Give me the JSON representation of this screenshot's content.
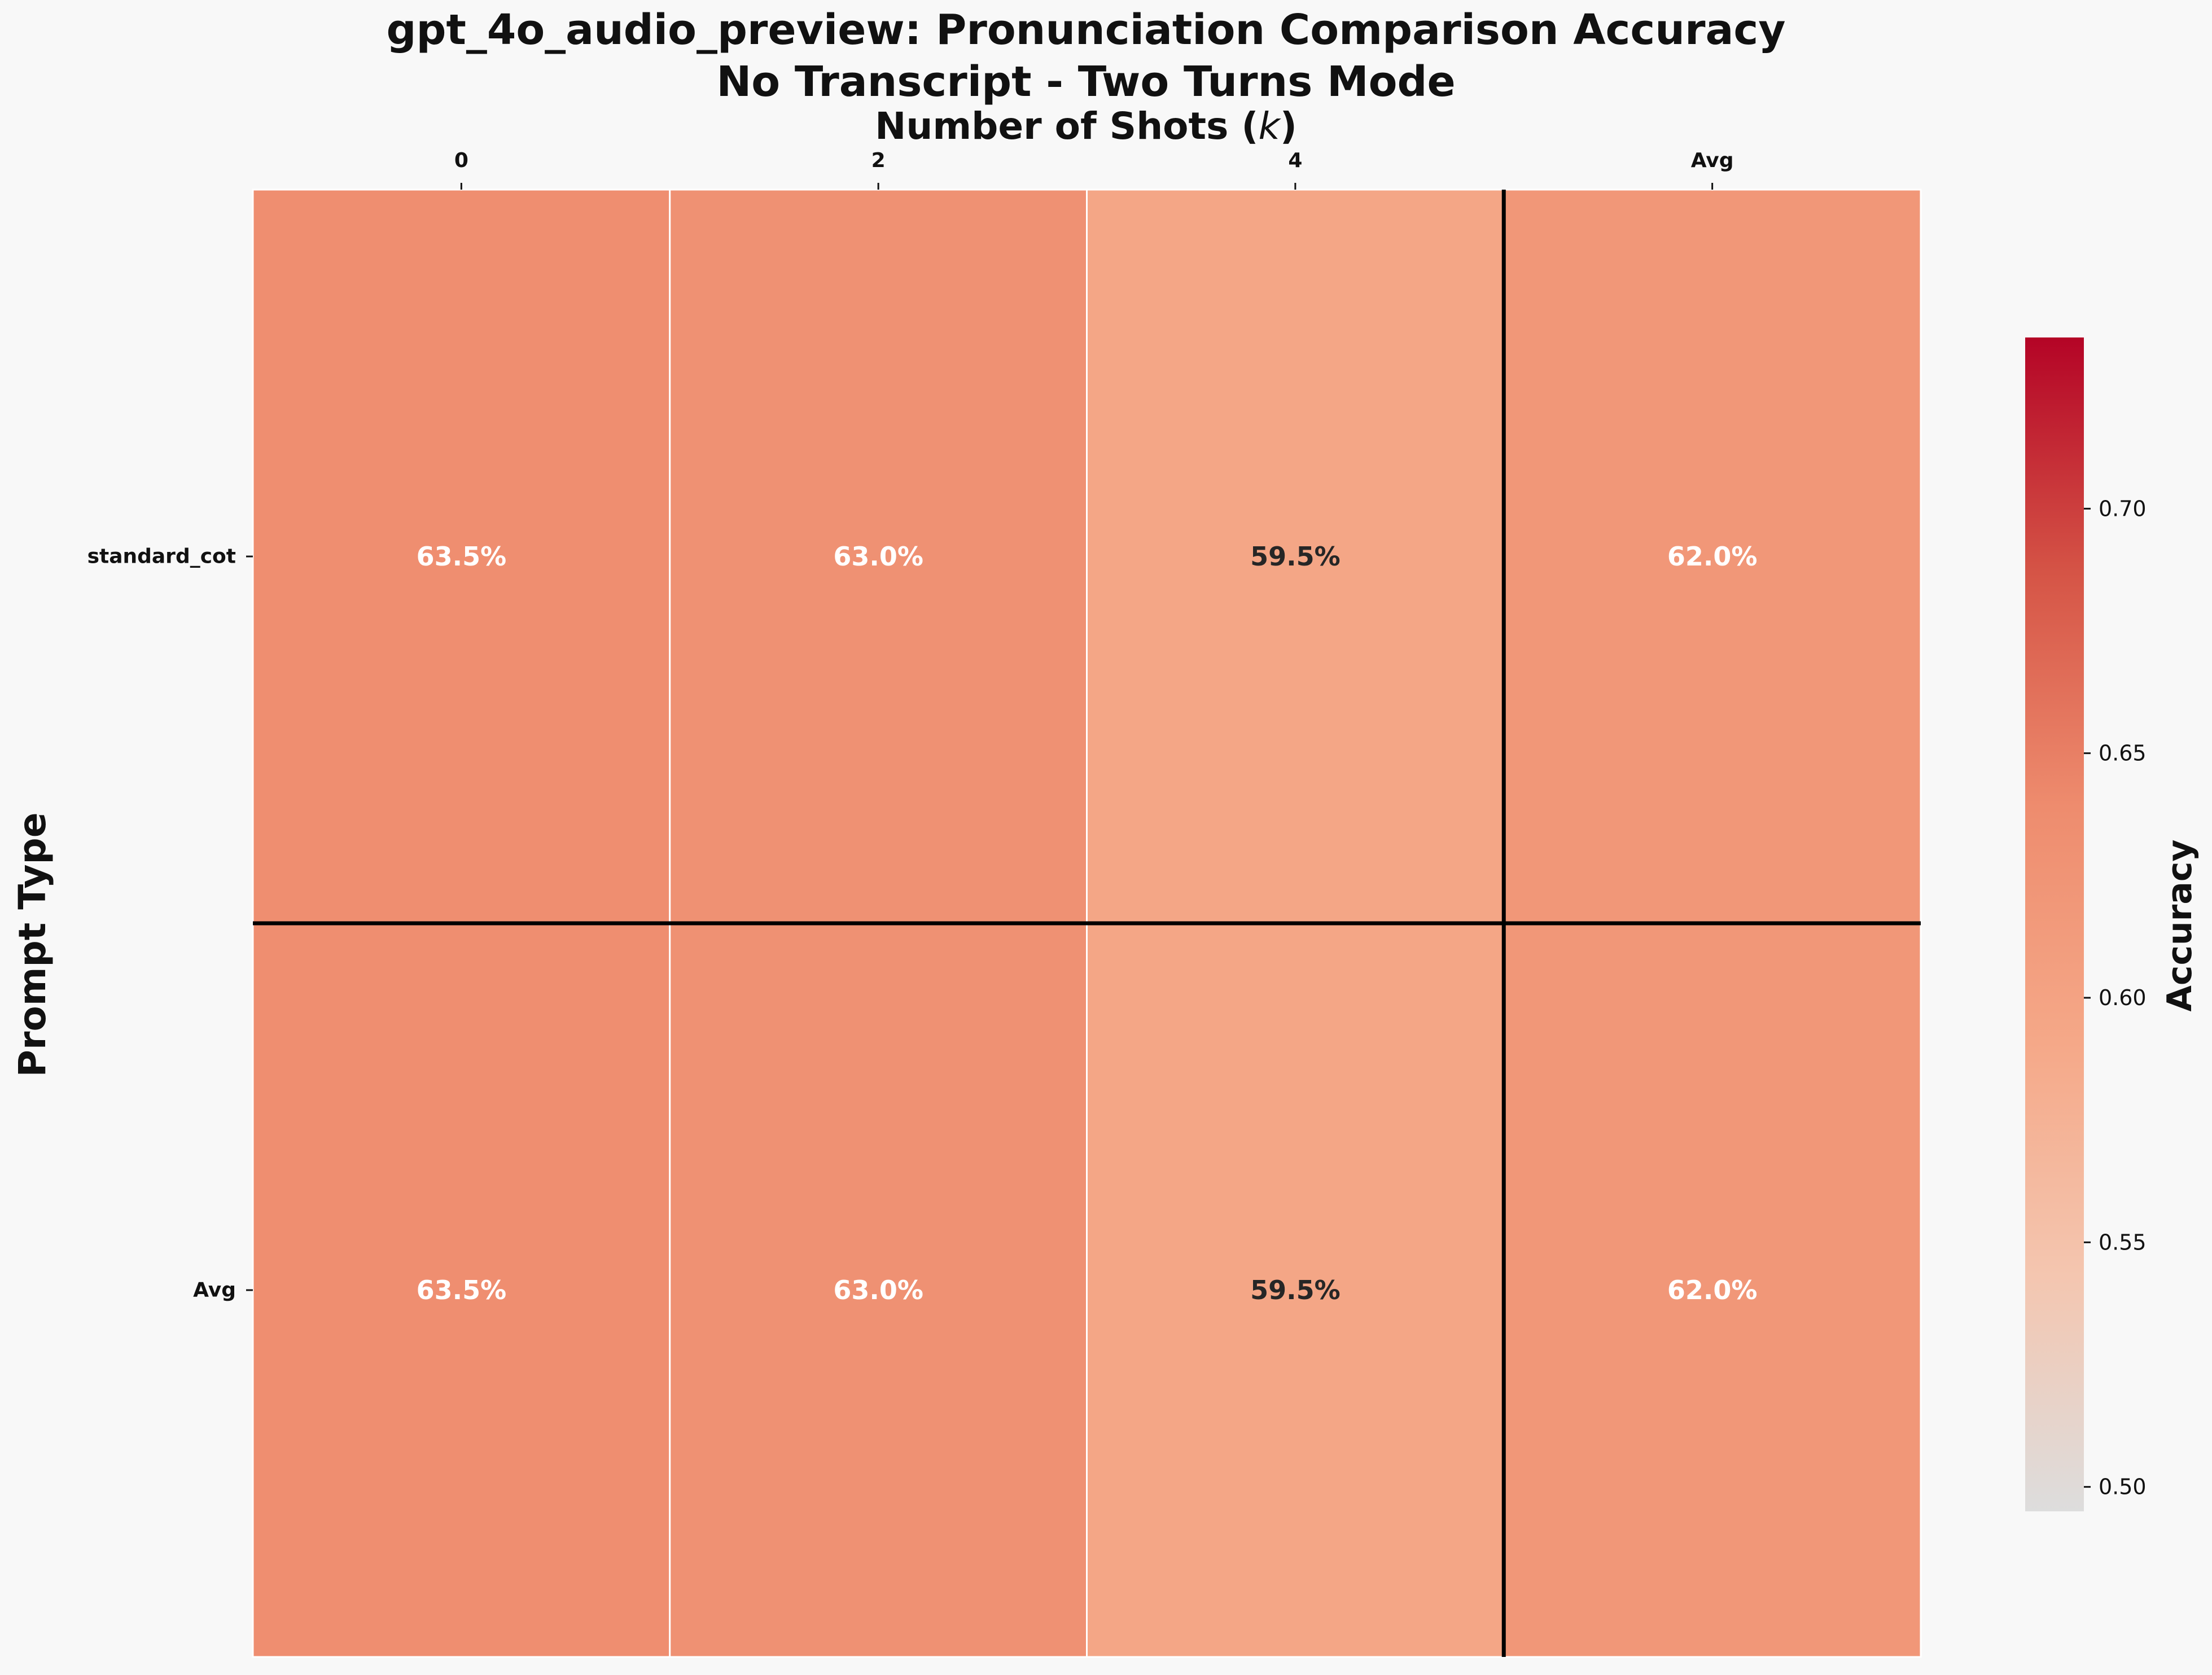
{
  "chart_data": {
    "type": "heatmap",
    "title": "gpt_4o_audio_preview: Pronunciation Comparison Accuracy",
    "subtitle": "No Transcript - Two Turns Mode",
    "xlabel_text": "Number of Shots (",
    "xlabel_var": "k",
    "xlabel_close": ")",
    "ylabel": "Prompt Type",
    "x_tick_position": "top",
    "columns": [
      "0",
      "2",
      "4",
      "Avg"
    ],
    "rows": [
      "standard_cot",
      "Avg"
    ],
    "values": [
      [
        0.635,
        0.63,
        0.595,
        0.62
      ],
      [
        0.635,
        0.63,
        0.595,
        0.62
      ]
    ],
    "cell_labels": [
      [
        "63.5%",
        "63.0%",
        "59.5%",
        "62.0%"
      ],
      [
        "63.5%",
        "63.0%",
        "59.5%",
        "62.0%"
      ]
    ],
    "colorbar": {
      "label": "Accuracy",
      "vmin": 0.495,
      "vmax": 0.735,
      "ticks": [
        0.5,
        0.55,
        0.6,
        0.65,
        0.7
      ],
      "tick_labels": [
        "0.50",
        "0.55",
        "0.60",
        "0.65",
        "0.70"
      ],
      "colormap": "coolwarm-right-half (light gray to dark red)",
      "colors": [
        "#dddddd",
        "#f4c6b0",
        "#f5a888",
        "#ee8c6e",
        "#d55446",
        "#b40426"
      ]
    },
    "separators": "heavy black lines before Avg row and Avg column",
    "grid": false,
    "colors": {
      "background": "#f8f8f8",
      "cell_border": "#ffffff",
      "separator": "#000000",
      "text_light": "#ffffff",
      "text_dark": "#262626"
    }
  }
}
